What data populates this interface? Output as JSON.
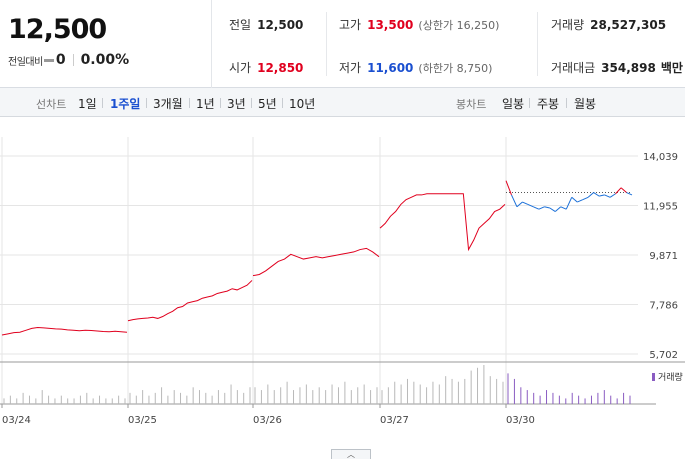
{
  "quote": {
    "price": "12,500",
    "change_label": "전일대비",
    "change_value": "0",
    "change_pct": "0.00%",
    "prev_label": "전일",
    "prev_value": "12,500",
    "open_label": "시가",
    "open_value": "12,850",
    "high_label": "고가",
    "high_value": "13,500",
    "upper_limit_label": "상한가",
    "upper_limit_value": "16,250",
    "low_label": "저가",
    "low_value": "11,600",
    "lower_limit_label": "하한가",
    "lower_limit_value": "8,750",
    "volume_label": "거래량",
    "volume_value": "28,527,305",
    "amount_label": "거래대금",
    "amount_value": "354,898",
    "amount_unit": "백만"
  },
  "toolbar": {
    "line_title": "선차트",
    "line_items": [
      "1일",
      "1주일",
      "3개월",
      "1년",
      "3년",
      "5년",
      "10년"
    ],
    "line_active": "1주일",
    "candle_title": "봉차트",
    "candle_items": [
      "일봉",
      "주봉",
      "월봉"
    ]
  },
  "colors": {
    "up": "#e0001e",
    "down": "#1a6fd8",
    "volume": "#b8b8b8",
    "volume_today": "#8a5cc2",
    "grid": "#e5e5e5"
  },
  "collapse_icon": "chevron-up-icon",
  "chart_data": {
    "type": "line",
    "x_ticks": [
      "03/24",
      "03/25",
      "03/26",
      "03/27",
      "03/30"
    ],
    "y_ticks": [
      "14,039",
      "11,955",
      "9,871",
      "7,786",
      "5,702"
    ],
    "ylim": [
      5702,
      14039
    ],
    "volume_legend": "거래량",
    "grid": true,
    "days": [
      {
        "label": "03/24",
        "points": [
          6500,
          6550,
          6600,
          6620,
          6700,
          6780,
          6820,
          6800,
          6780,
          6760,
          6750,
          6720,
          6700,
          6680,
          6700,
          6690,
          6670,
          6650,
          6640,
          6660,
          6640,
          6620
        ]
      },
      {
        "label": "03/25",
        "points": [
          7100,
          7150,
          7180,
          7200,
          7220,
          7250,
          7200,
          7280,
          7400,
          7500,
          7650,
          7700,
          7850,
          7900,
          7950,
          8050,
          8100,
          8150,
          8250,
          8300,
          8350,
          8450,
          8400,
          8500,
          8600,
          8800
        ]
      },
      {
        "label": "03/26",
        "points": [
          9000,
          9050,
          9200,
          9400,
          9600,
          9700,
          9900,
          9800,
          9700,
          9750,
          9800,
          9750,
          9800,
          9850,
          9900,
          9950,
          10000,
          10100,
          10150,
          10000,
          9800
        ]
      },
      {
        "label": "03/27",
        "points": [
          11000,
          11200,
          11500,
          11700,
          12000,
          12200,
          12300,
          12400,
          12400,
          12450,
          12450,
          12450,
          12450,
          12450,
          12450,
          12450,
          12450,
          10100,
          10500,
          11000,
          11200,
          11400,
          11700,
          11800,
          12000
        ]
      },
      {
        "label": "03/30",
        "points": [
          13000,
          12400,
          11900,
          12100,
          12000,
          11900,
          11800,
          11900,
          11850,
          11700,
          11900,
          11800,
          12300,
          12100,
          12200,
          12300,
          12500,
          12350,
          12400,
          12300,
          12450,
          12700,
          12500,
          12400
        ]
      }
    ],
    "reference_price": 12500,
    "volume_bars": {
      "day_0": [
        2,
        3,
        2,
        4,
        3,
        2,
        5,
        3,
        2,
        3,
        2,
        2,
        3,
        4,
        2,
        3,
        2,
        2,
        3,
        2
      ],
      "day_1": [
        4,
        3,
        5,
        3,
        4,
        6,
        3,
        5,
        4,
        3,
        6,
        5,
        4,
        3,
        5,
        4,
        7,
        5,
        4,
        6
      ],
      "day_2": [
        6,
        5,
        7,
        5,
        6,
        8,
        5,
        6,
        7,
        5,
        6,
        5,
        7,
        6,
        8,
        5,
        6,
        7,
        5,
        6
      ],
      "day_3": [
        5,
        6,
        8,
        7,
        9,
        8,
        7,
        6,
        8,
        7,
        10,
        9,
        8,
        9,
        12,
        13,
        14,
        10,
        9,
        8
      ],
      "day_4": [
        11,
        9,
        6,
        5,
        4,
        3,
        5,
        4,
        3,
        2,
        4,
        3,
        2,
        3,
        4,
        5,
        3,
        2,
        4,
        3
      ]
    }
  }
}
